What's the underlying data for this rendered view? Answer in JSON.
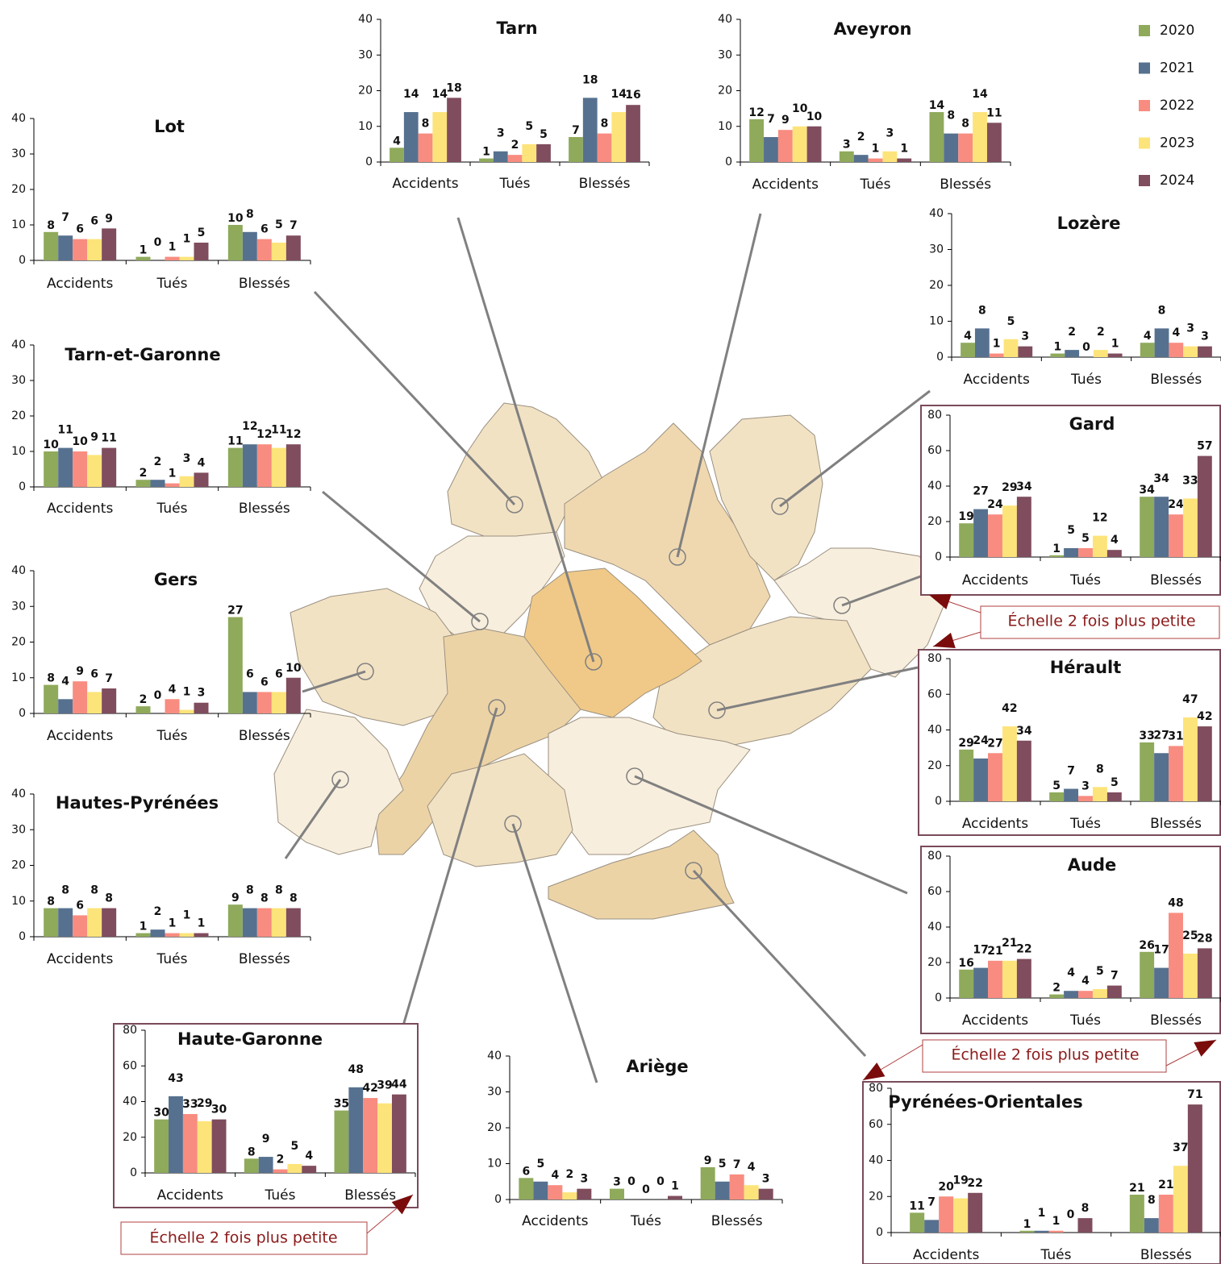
{
  "legend": [
    {
      "name": "2020",
      "color": "#8faa5b"
    },
    {
      "name": "2021",
      "color": "#56718f"
    },
    {
      "name": "2022",
      "color": "#f88c80"
    },
    {
      "name": "2023",
      "color": "#fde47a"
    },
    {
      "name": "2024",
      "color": "#7f4d5d"
    }
  ],
  "chart_data": [
    {
      "type": "bar",
      "title": "Lot",
      "categories": [
        "Accidents",
        "Tués",
        "Blessés"
      ],
      "series": [
        {
          "values": [
            8,
            1,
            10
          ]
        },
        {
          "values": [
            7,
            0,
            8
          ]
        },
        {
          "values": [
            6,
            1,
            6
          ]
        },
        {
          "values": [
            6,
            1,
            5
          ]
        },
        {
          "values": [
            9,
            5,
            7
          ]
        }
      ],
      "ylim": [
        0,
        40
      ],
      "yticks": [
        0,
        10,
        20,
        30,
        40
      ]
    },
    {
      "type": "bar",
      "title": "Tarn",
      "categories": [
        "Accidents",
        "Tués",
        "Blessés"
      ],
      "series": [
        {
          "values": [
            4,
            1,
            7
          ]
        },
        {
          "values": [
            14,
            3,
            18
          ]
        },
        {
          "values": [
            8,
            2,
            8
          ]
        },
        {
          "values": [
            14,
            5,
            14
          ]
        },
        {
          "values": [
            18,
            5,
            16
          ]
        }
      ],
      "ylim": [
        0,
        40
      ],
      "yticks": [
        0,
        10,
        20,
        30,
        40
      ]
    },
    {
      "type": "bar",
      "title": "Aveyron",
      "categories": [
        "Accidents",
        "Tués",
        "Blessés"
      ],
      "series": [
        {
          "values": [
            12,
            3,
            14
          ]
        },
        {
          "values": [
            7,
            2,
            8
          ]
        },
        {
          "values": [
            9,
            1,
            8
          ]
        },
        {
          "values": [
            10,
            3,
            14
          ]
        },
        {
          "values": [
            10,
            1,
            11
          ]
        }
      ],
      "ylim": [
        0,
        40
      ],
      "yticks": [
        0,
        10,
        20,
        30,
        40
      ]
    },
    {
      "type": "bar",
      "title": "Lozère",
      "categories": [
        "Accidents",
        "Tués",
        "Blessés"
      ],
      "series": [
        {
          "values": [
            4,
            1,
            4
          ]
        },
        {
          "values": [
            8,
            2,
            8
          ]
        },
        {
          "values": [
            1,
            0,
            4
          ]
        },
        {
          "values": [
            5,
            2,
            3
          ]
        },
        {
          "values": [
            3,
            1,
            3
          ]
        }
      ],
      "ylim": [
        0,
        40
      ],
      "yticks": [
        0,
        10,
        20,
        30,
        40
      ]
    },
    {
      "type": "bar",
      "title": "Tarn-et-Garonne",
      "categories": [
        "Accidents",
        "Tués",
        "Blessés"
      ],
      "series": [
        {
          "values": [
            10,
            2,
            11
          ]
        },
        {
          "values": [
            11,
            2,
            12
          ]
        },
        {
          "values": [
            10,
            1,
            12
          ]
        },
        {
          "values": [
            9,
            3,
            11
          ]
        },
        {
          "values": [
            11,
            4,
            12
          ]
        }
      ],
      "ylim": [
        0,
        40
      ],
      "yticks": [
        0,
        10,
        20,
        30,
        40
      ]
    },
    {
      "type": "bar",
      "title": "Gard",
      "categories": [
        "Accidents",
        "Tués",
        "Blessés"
      ],
      "series": [
        {
          "values": [
            19,
            1,
            34
          ]
        },
        {
          "values": [
            27,
            5,
            34
          ]
        },
        {
          "values": [
            24,
            5,
            24
          ]
        },
        {
          "values": [
            29,
            12,
            33
          ]
        },
        {
          "values": [
            34,
            4,
            57
          ]
        }
      ],
      "ylim": [
        0,
        80
      ],
      "yticks": [
        0,
        20,
        40,
        60,
        80
      ],
      "annotation": "Échelle 2 fois plus petite"
    },
    {
      "type": "bar",
      "title": "Gers",
      "categories": [
        "Accidents",
        "Tués",
        "Blessés"
      ],
      "series": [
        {
          "values": [
            8,
            2,
            27
          ]
        },
        {
          "values": [
            4,
            0,
            6
          ]
        },
        {
          "values": [
            9,
            4,
            6
          ]
        },
        {
          "values": [
            6,
            1,
            6
          ]
        },
        {
          "values": [
            7,
            3,
            10
          ]
        }
      ],
      "ylim": [
        0,
        40
      ],
      "yticks": [
        0,
        10,
        20,
        30,
        40
      ]
    },
    {
      "type": "bar",
      "title": "Hérault",
      "categories": [
        "Accidents",
        "Tués",
        "Blessés"
      ],
      "series": [
        {
          "values": [
            29,
            5,
            33
          ]
        },
        {
          "values": [
            24,
            7,
            27
          ]
        },
        {
          "values": [
            27,
            3,
            31
          ]
        },
        {
          "values": [
            42,
            8,
            47
          ]
        },
        {
          "values": [
            34,
            5,
            42
          ]
        }
      ],
      "ylim": [
        0,
        80
      ],
      "yticks": [
        0,
        20,
        40,
        60,
        80
      ]
    },
    {
      "type": "bar",
      "title": "Hautes-Pyrénées",
      "categories": [
        "Accidents",
        "Tués",
        "Blessés"
      ],
      "series": [
        {
          "values": [
            8,
            1,
            9
          ]
        },
        {
          "values": [
            8,
            2,
            8
          ]
        },
        {
          "values": [
            6,
            1,
            8
          ]
        },
        {
          "values": [
            8,
            1,
            8
          ]
        },
        {
          "values": [
            8,
            1,
            8
          ]
        }
      ],
      "ylim": [
        0,
        40
      ],
      "yticks": [
        0,
        10,
        20,
        30,
        40
      ]
    },
    {
      "type": "bar",
      "title": "Aude",
      "categories": [
        "Accidents",
        "Tués",
        "Blessés"
      ],
      "series": [
        {
          "values": [
            16,
            2,
            26
          ]
        },
        {
          "values": [
            17,
            4,
            17
          ]
        },
        {
          "values": [
            21,
            4,
            48
          ]
        },
        {
          "values": [
            21,
            5,
            25
          ]
        },
        {
          "values": [
            22,
            7,
            28
          ]
        }
      ],
      "ylim": [
        0,
        80
      ],
      "yticks": [
        0,
        20,
        40,
        60,
        80
      ],
      "annotation": "Échelle 2 fois plus petite"
    },
    {
      "type": "bar",
      "title": "Haute-Garonne",
      "categories": [
        "Accidents",
        "Tués",
        "Blessés"
      ],
      "series": [
        {
          "values": [
            30,
            8,
            35
          ]
        },
        {
          "values": [
            43,
            9,
            48
          ]
        },
        {
          "values": [
            33,
            2,
            42
          ]
        },
        {
          "values": [
            29,
            5,
            39
          ]
        },
        {
          "values": [
            30,
            4,
            44
          ]
        }
      ],
      "ylim": [
        0,
        80
      ],
      "yticks": [
        0,
        20,
        40,
        60,
        80
      ],
      "annotation": "Échelle 2 fois plus petite"
    },
    {
      "type": "bar",
      "title": "Ariège",
      "categories": [
        "Accidents",
        "Tués",
        "Blessés"
      ],
      "series": [
        {
          "values": [
            6,
            3,
            9
          ]
        },
        {
          "values": [
            5,
            0,
            5
          ]
        },
        {
          "values": [
            4,
            0,
            7
          ]
        },
        {
          "values": [
            2,
            0,
            4
          ]
        },
        {
          "values": [
            3,
            1,
            3
          ]
        }
      ],
      "ylim": [
        0,
        40
      ],
      "yticks": [
        0,
        10,
        20,
        30,
        40
      ]
    },
    {
      "type": "bar",
      "title": "Pyrénées-Orientales",
      "categories": [
        "Accidents",
        "Tués",
        "Blessés"
      ],
      "series": [
        {
          "values": [
            11,
            1,
            21
          ]
        },
        {
          "values": [
            7,
            1,
            8
          ]
        },
        {
          "values": [
            20,
            1,
            21
          ]
        },
        {
          "values": [
            19,
            0,
            37
          ]
        },
        {
          "values": [
            22,
            8,
            71
          ]
        }
      ],
      "ylim": [
        0,
        80
      ],
      "yticks": [
        0,
        20,
        40,
        60,
        80
      ]
    }
  ]
}
